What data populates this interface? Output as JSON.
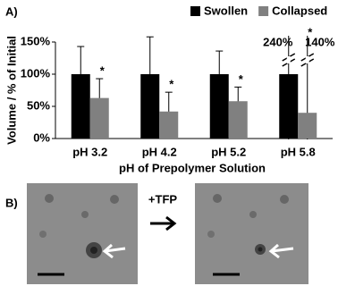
{
  "chart_data": {
    "type": "bar",
    "panel_label": "A)",
    "categories": [
      "pH 3.2",
      "pH 4.2",
      "pH 5.2",
      "pH 5.8"
    ],
    "series": [
      {
        "name": "Swollen",
        "color": "#000000",
        "values": [
          100,
          100,
          100,
          100
        ],
        "errors": [
          43,
          58,
          36,
          240
        ]
      },
      {
        "name": "Collapsed",
        "color": "#808080",
        "values": [
          63,
          42,
          58,
          40
        ],
        "errors": [
          30,
          30,
          22,
          140
        ],
        "marks": [
          "*",
          "*",
          "*",
          "*"
        ]
      }
    ],
    "annotations": [
      "240%",
      "140%"
    ],
    "y_label": "Volume / % of Initial",
    "x_label": "pH of Prepolymer Solution",
    "ylim": [
      0,
      150
    ],
    "yticks": [
      {
        "value": 0,
        "label": "0%"
      },
      {
        "value": 50,
        "label": "50%"
      },
      {
        "value": 100,
        "label": "100%"
      },
      {
        "value": 150,
        "label": "150%"
      }
    ],
    "legend": "top-right"
  },
  "panel_b": {
    "label": "B)",
    "treatment": "+TFP"
  }
}
